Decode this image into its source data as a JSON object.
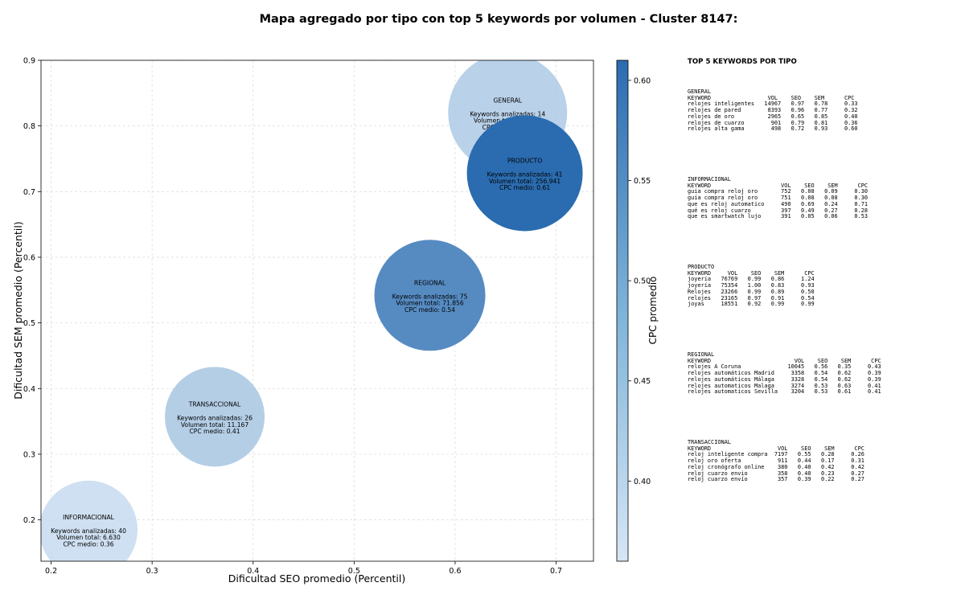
{
  "title": "Mapa agregado por tipo con top 5 keywords por volumen - Cluster 8147:",
  "chart_data": {
    "type": "scatter",
    "title": "Mapa agregado por tipo con top 5 keywords por volumen - Cluster 8147:",
    "xlabel": "Dificultad SEO promedio (Percentil)",
    "ylabel": "Dificultad SEM promedio (Percentil)",
    "xlim": [
      0.19,
      0.737
    ],
    "ylim": [
      0.137,
      0.9
    ],
    "xticks": [
      "0.2",
      "0.3",
      "0.4",
      "0.5",
      "0.6",
      "0.7"
    ],
    "xtick_values": [
      0.2,
      0.3,
      0.4,
      0.5,
      0.6,
      0.7
    ],
    "yticks": [
      "0.2",
      "0.3",
      "0.4",
      "0.5",
      "0.6",
      "0.7",
      "0.8",
      "0.9"
    ],
    "ytick_values": [
      0.2,
      0.3,
      0.4,
      0.5,
      0.6,
      0.7,
      0.8,
      0.9
    ],
    "grid": true,
    "colorbar": {
      "label": "CPC promedio",
      "min": 0.36,
      "max": 0.61,
      "ticks": [
        "0.40",
        "0.45",
        "0.50",
        "0.55",
        "0.60"
      ],
      "tick_values": [
        0.4,
        0.45,
        0.5,
        0.55,
        0.6
      ],
      "colors": [
        "#c6dbef",
        "#2b6cb0"
      ]
    },
    "points": [
      {
        "name": "GENERAL",
        "x": 0.652,
        "y": 0.82,
        "cpc": 0.4,
        "alpha": 0.85,
        "lines": [
          "Keywords analizadas: 14",
          "Volumen total: 29.537",
          "CPC medio: 0.40"
        ]
      },
      {
        "name": "PRODUCTO",
        "x": 0.669,
        "y": 0.728,
        "cpc": 0.61,
        "alpha": 1.0,
        "lines": [
          "Keywords analizadas: 41",
          "Volumen total: 256.941",
          "CPC medio: 0.61"
        ]
      },
      {
        "name": "REGIONAL",
        "x": 0.575,
        "y": 0.542,
        "cpc": 0.54,
        "alpha": 1.0,
        "lines": [
          "Keywords analizadas: 75",
          "Volumen total: 71.856",
          "CPC medio: 0.54"
        ]
      },
      {
        "name": "TRANSACCIONAL",
        "x": 0.362,
        "y": 0.357,
        "cpc": 0.41,
        "alpha": 0.85,
        "lines": [
          "Keywords analizadas: 26",
          "Volumen total: 11.167",
          "CPC medio: 0.41"
        ]
      },
      {
        "name": "INFORMACIONAL",
        "x": 0.237,
        "y": 0.185,
        "cpc": 0.36,
        "alpha": 0.85,
        "lines": [
          "Keywords analizadas: 40",
          "Volumen total: 6.630",
          "CPC medio: 0.36"
        ]
      }
    ]
  },
  "keywords_panel": {
    "title": "TOP 5 KEYWORDS POR TIPO",
    "blocks": [
      {
        "text": "GENERAL\nKEYWORD                 VOL    SEO    SEM      CPC\nrelojes inteligentes   14967   0.97   0.78     0.33\nrelojes de pared        8393   0.96   0.77     0.32\nrelojes de oro          2965   0.65   0.85     0.40\nrelojes de cuarzo        901   0.79   0.81     0.36\nrelojes alta gama        498   0.72   0.93     0.60"
      },
      {
        "text": "INFORMACIONAL\nKEYWORD                     VOL    SEO    SEM      CPC\nguia compra reloj oro       752   0.08   0.09     0.30\nguía compra reloj oro       751   0.08   0.08     0.30\nque es reloj automatico     490   0.69   0.24     0.71\nqué es reloj cuarzo         397   0.49   0.27     0.28\nque es smartwatch lujo      391   0.05   0.06     0.53"
      },
      {
        "text": "PRODUCTO\nKEYWORD     VOL    SEO    SEM      CPC\njoyeria   76769   0.99   0.86     1.24\njoyería   75354   1.00   0.83     0.93\nRelojes   23266   0.99   0.89     0.50\nrelojes   23165   0.97   0.91     0.54\njoyas     18551   0.92   0.99     0.99"
      },
      {
        "text": "REGIONAL\nKEYWORD                         VOL    SEO    SEM      CPC\nrelojes A Coruna              10045   0.56   0.35     0.43\nrelojes automáticos Madrid     3358   0.54   0.62     0.39\nrelojes automáticos Málaga     3328   0.54   0.62     0.39\nrelojes automaticos Malaga     3274   0.53   0.63     0.41\nrelojes automaticos Sevilla    3204   0.53   0.61     0.41"
      },
      {
        "text": "TRANSACCIONAL\nKEYWORD                    VOL    SEO    SEM      CPC\nreloj inteligente compra  7197   0.55   0.28     0.26\nreloj oro oferta           911   0.44   0.17     0.31\nreloj cronógrafo online    380   0.40   0.42     0.42\nreloj cuarzo envio         358   0.40   0.23     0.27\nreloj cuarzo envío         357   0.39   0.22     0.27"
      }
    ]
  }
}
